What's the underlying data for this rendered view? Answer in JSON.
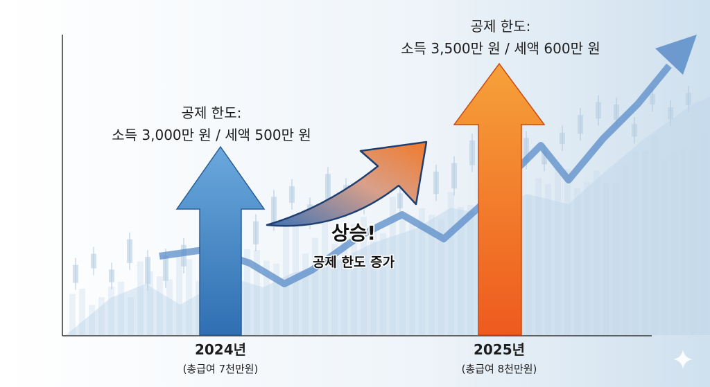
{
  "items": [
    {
      "limit_title": "공제 한도:",
      "limit_detail": "소득 3,000만 원 / 세액 500만 원",
      "year": "2024년",
      "salary": "(총급여 7천만원)"
    },
    {
      "limit_title": "공제 한도:",
      "limit_detail": "소득 3,500만 원 / 세액 600만 원",
      "year": "2025년",
      "salary": "(총급여 8천만원)"
    }
  ],
  "callout": {
    "headline": "상승!",
    "caption": "공제 한도 증가"
  }
}
